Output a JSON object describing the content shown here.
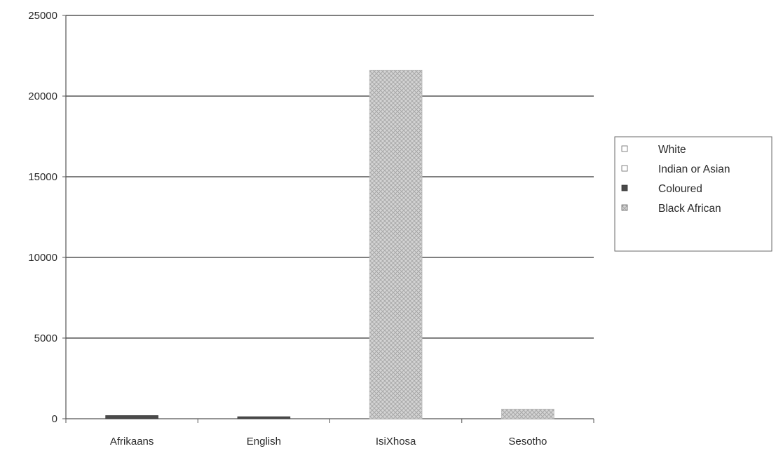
{
  "chart_data": {
    "type": "bar",
    "stacked": true,
    "categories": [
      "Afrikaans",
      "English",
      "IsiXhosa",
      "Sesotho"
    ],
    "series": [
      {
        "name": "White",
        "values": [
          0,
          0,
          0,
          0
        ],
        "color": "#ffffff",
        "pattern": "blank"
      },
      {
        "name": "Indian or Asian",
        "values": [
          0,
          0,
          0,
          0
        ],
        "color": "#ffffff",
        "pattern": "blank"
      },
      {
        "name": "Coloured",
        "values": [
          200,
          100,
          0,
          0
        ],
        "color": "#4a4a4a",
        "pattern": "solid"
      },
      {
        "name": "Black African",
        "values": [
          0,
          0,
          21600,
          600
        ],
        "color": "#c8c8c8",
        "pattern": "crosshatch"
      }
    ],
    "yticks": [
      "0",
      "5000",
      "10000",
      "15000",
      "20000",
      "25000"
    ],
    "ylim": [
      0,
      25000
    ],
    "grid": true,
    "legend_position": "right"
  }
}
